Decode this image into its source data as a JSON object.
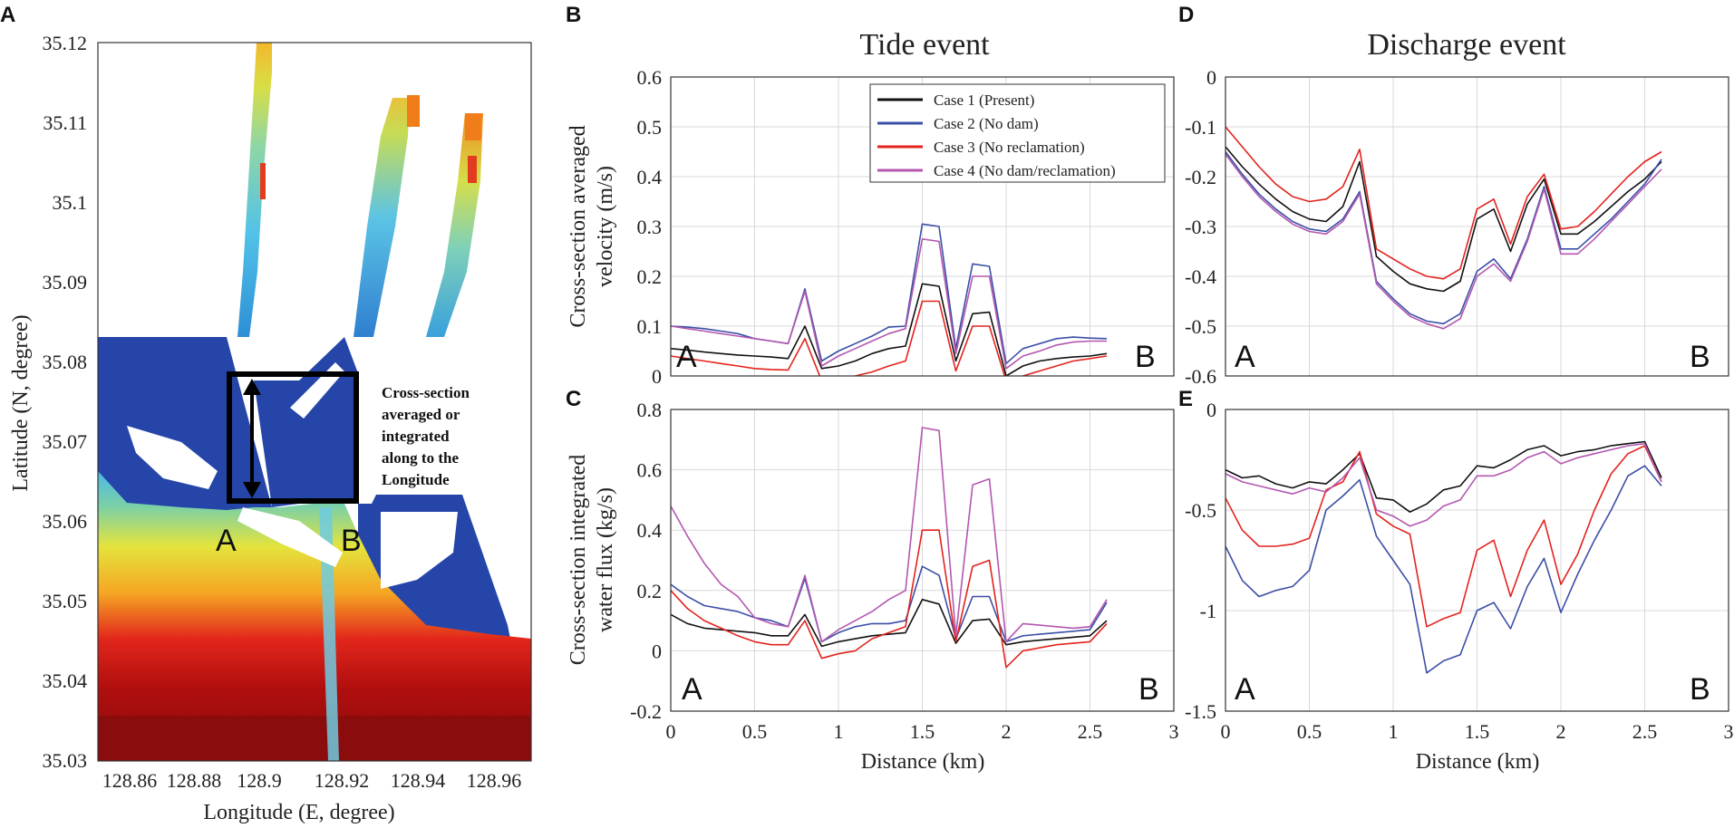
{
  "colors": {
    "case1": "#111111",
    "case2": "#3a4fa6",
    "case3": "#e3231e",
    "case4": "#b457b0"
  },
  "panel_a": {
    "letter": "A",
    "ylabel": "Latitude (N, degree)",
    "xlabel": "Longitude (E, degree)",
    "xticks": [
      "128.86",
      "128.88",
      "128.9",
      "128.92",
      "128.94",
      "128.96"
    ],
    "yticks": [
      "35.12",
      "35.11",
      "35.1",
      "35.09",
      "35.08",
      "35.07",
      "35.06",
      "35.05",
      "35.04",
      "35.03"
    ],
    "point_a": "A",
    "point_b": "B",
    "annotation": [
      "Cross-section",
      "averaged or",
      "integrated",
      "along to the",
      "Longitude"
    ]
  },
  "titles": {
    "tide": "Tide event",
    "discharge": "Discharge event"
  },
  "chart_data": [
    {
      "panel": "B",
      "type": "line",
      "title": "Tide event",
      "xlabel": "",
      "ylabel": "Cross-section averaged velocity (m/s)",
      "ylabel_lines": [
        "Cross-section averaged",
        "velocity (m/s)"
      ],
      "xlim": [
        0,
        3
      ],
      "ylim": [
        0,
        0.6
      ],
      "xticks": [],
      "yticks": [
        0,
        0.1,
        0.2,
        0.3,
        0.4,
        0.5,
        0.6
      ],
      "ytick_labels": [
        "0",
        "0.1",
        "0.2",
        "0.3",
        "0.4",
        "0.5",
        "0.6"
      ],
      "start_label": "A",
      "end_label": "B",
      "legend": "top-center",
      "grid": true,
      "x": [
        0,
        0.1,
        0.2,
        0.3,
        0.4,
        0.5,
        0.6,
        0.7,
        0.8,
        0.9,
        1.0,
        1.1,
        1.2,
        1.3,
        1.4,
        1.5,
        1.6,
        1.7,
        1.8,
        1.9,
        2.0,
        2.1,
        2.2,
        2.3,
        2.4,
        2.5,
        2.6
      ],
      "series": [
        {
          "name": "Case 1 (Present)",
          "color_key": "case1",
          "values": [
            0.055,
            0.052,
            0.048,
            0.045,
            0.042,
            0.04,
            0.038,
            0.035,
            0.1,
            0.015,
            0.02,
            0.03,
            0.045,
            0.055,
            0.06,
            0.185,
            0.18,
            0.03,
            0.125,
            0.128,
            0.0,
            0.02,
            0.03,
            0.035,
            0.038,
            0.04,
            0.045
          ]
        },
        {
          "name": "Case 2 (No dam)",
          "color_key": "case2",
          "values": [
            0.1,
            0.098,
            0.095,
            0.09,
            0.085,
            0.075,
            0.07,
            0.065,
            0.175,
            0.03,
            0.05,
            0.065,
            0.08,
            0.098,
            0.1,
            0.305,
            0.3,
            0.055,
            0.225,
            0.22,
            0.025,
            0.055,
            0.065,
            0.075,
            0.078,
            0.076,
            0.075
          ]
        },
        {
          "name": "Case 3 (No reclamation)",
          "color_key": "case3",
          "values": [
            0.04,
            0.035,
            0.03,
            0.025,
            0.02,
            0.015,
            0.013,
            0.012,
            0.075,
            -0.01,
            -0.005,
            0.0,
            0.008,
            0.02,
            0.03,
            0.15,
            0.15,
            0.01,
            0.1,
            0.1,
            -0.01,
            0.0,
            0.01,
            0.02,
            0.03,
            0.035,
            0.04
          ]
        },
        {
          "name": "Case 4 (No dam/reclamation)",
          "color_key": "case4",
          "values": [
            0.1,
            0.095,
            0.09,
            0.085,
            0.08,
            0.075,
            0.07,
            0.065,
            0.17,
            0.02,
            0.04,
            0.055,
            0.07,
            0.085,
            0.095,
            0.275,
            0.27,
            0.045,
            0.2,
            0.2,
            0.015,
            0.04,
            0.05,
            0.062,
            0.068,
            0.07,
            0.07
          ]
        }
      ]
    },
    {
      "panel": "C",
      "type": "line",
      "title": "",
      "xlabel": "Distance (km)",
      "ylabel": "Cross-section integrated water flux (kg/s)",
      "ylabel_lines": [
        "Cross-section integrated",
        "water flux (kg/s)"
      ],
      "xlim": [
        0,
        3
      ],
      "ylim": [
        -0.2,
        0.8
      ],
      "xticks": [
        0,
        0.5,
        1,
        1.5,
        2,
        2.5,
        3
      ],
      "xtick_labels": [
        "0",
        "0.5",
        "1",
        "1.5",
        "2",
        "2.5",
        "3"
      ],
      "yticks": [
        -0.2,
        0,
        0.2,
        0.4,
        0.6,
        0.8
      ],
      "ytick_labels": [
        "-0.2",
        "0",
        "0.2",
        "0.4",
        "0.6",
        "0.8"
      ],
      "start_label": "A",
      "end_label": "B",
      "grid": true,
      "x": [
        0,
        0.1,
        0.2,
        0.3,
        0.4,
        0.5,
        0.6,
        0.7,
        0.8,
        0.9,
        1.0,
        1.1,
        1.2,
        1.3,
        1.4,
        1.5,
        1.6,
        1.7,
        1.8,
        1.9,
        2.0,
        2.1,
        2.2,
        2.3,
        2.4,
        2.5,
        2.6
      ],
      "series": [
        {
          "name": "Case 1 (Present)",
          "color_key": "case1",
          "values": [
            0.12,
            0.09,
            0.075,
            0.07,
            0.065,
            0.06,
            0.05,
            0.05,
            0.12,
            0.015,
            0.03,
            0.04,
            0.05,
            0.055,
            0.06,
            0.17,
            0.155,
            0.025,
            0.1,
            0.105,
            0.02,
            0.03,
            0.035,
            0.04,
            0.045,
            0.05,
            0.1
          ]
        },
        {
          "name": "Case 2 (No dam)",
          "color_key": "case2",
          "values": [
            0.22,
            0.18,
            0.15,
            0.14,
            0.13,
            0.11,
            0.1,
            0.08,
            0.24,
            0.03,
            0.06,
            0.08,
            0.09,
            0.09,
            0.1,
            0.28,
            0.25,
            0.04,
            0.18,
            0.18,
            0.03,
            0.05,
            0.055,
            0.06,
            0.065,
            0.07,
            0.16
          ]
        },
        {
          "name": "Case 3 (No reclamation)",
          "color_key": "case3",
          "values": [
            0.2,
            0.14,
            0.1,
            0.075,
            0.05,
            0.03,
            0.02,
            0.02,
            0.1,
            -0.025,
            -0.01,
            0.0,
            0.04,
            0.06,
            0.08,
            0.4,
            0.4,
            0.03,
            0.28,
            0.3,
            -0.055,
            0.0,
            0.01,
            0.02,
            0.025,
            0.03,
            0.09
          ]
        },
        {
          "name": "Case 4 (No dam/reclamation)",
          "color_key": "case4",
          "values": [
            0.48,
            0.38,
            0.29,
            0.22,
            0.18,
            0.11,
            0.09,
            0.08,
            0.25,
            0.03,
            0.07,
            0.1,
            0.13,
            0.17,
            0.2,
            0.74,
            0.73,
            0.05,
            0.55,
            0.57,
            0.03,
            0.09,
            0.085,
            0.08,
            0.075,
            0.08,
            0.17
          ]
        }
      ]
    },
    {
      "panel": "D",
      "type": "line",
      "title": "Discharge event",
      "xlabel": "",
      "ylabel": "",
      "xlim": [
        0,
        3
      ],
      "ylim": [
        -0.6,
        0
      ],
      "xticks": [],
      "yticks": [
        -0.6,
        -0.5,
        -0.4,
        -0.3,
        -0.2,
        -0.1,
        0
      ],
      "ytick_labels": [
        "-0.6",
        "-0.5",
        "-0.4",
        "-0.3",
        "-0.2",
        "-0.1",
        "0"
      ],
      "start_label": "A",
      "end_label": "B",
      "grid": true,
      "x": [
        0,
        0.1,
        0.2,
        0.3,
        0.4,
        0.5,
        0.6,
        0.7,
        0.8,
        0.9,
        1.0,
        1.1,
        1.2,
        1.3,
        1.4,
        1.5,
        1.6,
        1.7,
        1.8,
        1.9,
        2.0,
        2.1,
        2.2,
        2.3,
        2.4,
        2.5,
        2.6
      ],
      "series": [
        {
          "name": "Case 1 (Present)",
          "color_key": "case1",
          "values": [
            -0.14,
            -0.18,
            -0.215,
            -0.245,
            -0.27,
            -0.285,
            -0.29,
            -0.26,
            -0.17,
            -0.36,
            -0.39,
            -0.415,
            -0.425,
            -0.43,
            -0.41,
            -0.285,
            -0.265,
            -0.35,
            -0.255,
            -0.205,
            -0.315,
            -0.315,
            -0.29,
            -0.26,
            -0.23,
            -0.205,
            -0.17
          ]
        },
        {
          "name": "Case 2 (No dam)",
          "color_key": "case2",
          "values": [
            -0.15,
            -0.195,
            -0.235,
            -0.265,
            -0.29,
            -0.305,
            -0.31,
            -0.285,
            -0.23,
            -0.41,
            -0.445,
            -0.475,
            -0.49,
            -0.495,
            -0.475,
            -0.39,
            -0.365,
            -0.405,
            -0.325,
            -0.22,
            -0.345,
            -0.345,
            -0.315,
            -0.285,
            -0.25,
            -0.215,
            -0.165
          ]
        },
        {
          "name": "Case 3 (No reclamation)",
          "color_key": "case3",
          "values": [
            -0.1,
            -0.14,
            -0.18,
            -0.215,
            -0.24,
            -0.25,
            -0.245,
            -0.22,
            -0.145,
            -0.345,
            -0.365,
            -0.385,
            -0.4,
            -0.405,
            -0.385,
            -0.265,
            -0.245,
            -0.335,
            -0.24,
            -0.195,
            -0.305,
            -0.3,
            -0.27,
            -0.235,
            -0.2,
            -0.17,
            -0.15
          ]
        },
        {
          "name": "Case 4 (No dam/reclamation)",
          "color_key": "case4",
          "values": [
            -0.155,
            -0.2,
            -0.24,
            -0.27,
            -0.295,
            -0.31,
            -0.315,
            -0.29,
            -0.235,
            -0.415,
            -0.45,
            -0.48,
            -0.495,
            -0.505,
            -0.485,
            -0.4,
            -0.375,
            -0.41,
            -0.33,
            -0.225,
            -0.355,
            -0.355,
            -0.325,
            -0.29,
            -0.255,
            -0.22,
            -0.185
          ]
        }
      ]
    },
    {
      "panel": "E",
      "type": "line",
      "title": "",
      "xlabel": "Distance (km)",
      "ylabel": "",
      "xlim": [
        0,
        3
      ],
      "ylim": [
        -1.5,
        0
      ],
      "xticks": [
        0,
        0.5,
        1,
        1.5,
        2,
        2.5,
        3
      ],
      "xtick_labels": [
        "0",
        "0.5",
        "1",
        "1.5",
        "2",
        "2.5",
        "3"
      ],
      "yticks": [
        -1.5,
        -1,
        -0.5,
        0
      ],
      "ytick_labels": [
        "-1.5",
        "-1",
        "-0.5",
        "0"
      ],
      "start_label": "A",
      "end_label": "B",
      "grid": true,
      "x": [
        0,
        0.1,
        0.2,
        0.3,
        0.4,
        0.5,
        0.6,
        0.7,
        0.8,
        0.9,
        1.0,
        1.1,
        1.2,
        1.3,
        1.4,
        1.5,
        1.6,
        1.7,
        1.8,
        1.9,
        2.0,
        2.1,
        2.2,
        2.3,
        2.4,
        2.5,
        2.6
      ],
      "series": [
        {
          "name": "Case 1 (Present)",
          "color_key": "case1",
          "values": [
            -0.3,
            -0.34,
            -0.33,
            -0.37,
            -0.39,
            -0.36,
            -0.37,
            -0.3,
            -0.22,
            -0.44,
            -0.45,
            -0.51,
            -0.47,
            -0.4,
            -0.38,
            -0.28,
            -0.29,
            -0.25,
            -0.2,
            -0.18,
            -0.23,
            -0.21,
            -0.2,
            -0.18,
            -0.17,
            -0.16,
            -0.34
          ]
        },
        {
          "name": "Case 2 (No dam)",
          "color_key": "case2",
          "values": [
            -0.68,
            -0.85,
            -0.93,
            -0.9,
            -0.88,
            -0.8,
            -0.5,
            -0.43,
            -0.35,
            -0.63,
            -0.75,
            -0.87,
            -1.31,
            -1.25,
            -1.22,
            -1.0,
            -0.96,
            -1.09,
            -0.88,
            -0.74,
            -1.01,
            -0.82,
            -0.65,
            -0.5,
            -0.33,
            -0.28,
            -0.38
          ]
        },
        {
          "name": "Case 3 (No reclamation)",
          "color_key": "case3",
          "values": [
            -0.44,
            -0.6,
            -0.68,
            -0.68,
            -0.67,
            -0.64,
            -0.4,
            -0.36,
            -0.21,
            -0.52,
            -0.58,
            -0.62,
            -1.08,
            -1.04,
            -1.01,
            -0.7,
            -0.65,
            -0.93,
            -0.7,
            -0.55,
            -0.87,
            -0.72,
            -0.5,
            -0.32,
            -0.22,
            -0.18,
            -0.36
          ]
        },
        {
          "name": "Case 4 (No dam/reclamation)",
          "color_key": "case4",
          "values": [
            -0.32,
            -0.36,
            -0.38,
            -0.4,
            -0.42,
            -0.39,
            -0.41,
            -0.34,
            -0.24,
            -0.5,
            -0.53,
            -0.58,
            -0.55,
            -0.48,
            -0.45,
            -0.33,
            -0.33,
            -0.3,
            -0.24,
            -0.21,
            -0.27,
            -0.24,
            -0.22,
            -0.2,
            -0.18,
            -0.17,
            -0.36
          ]
        }
      ]
    }
  ]
}
